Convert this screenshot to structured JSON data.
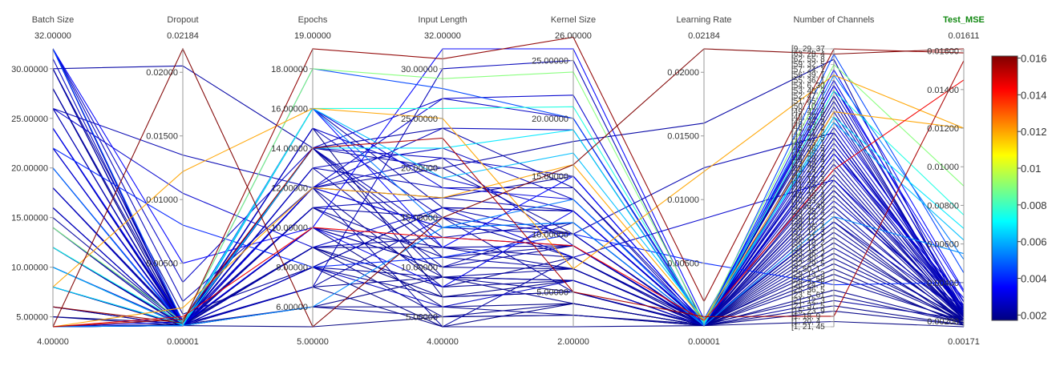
{
  "chart_data": {
    "type": "parallel_coordinates",
    "color_dimension": "Test_MSE",
    "dimensions": [
      {
        "name": "Batch Size",
        "range": [
          4.0,
          32.0
        ],
        "range_labels": [
          "4.00000",
          "32.00000"
        ],
        "ticks": [
          5,
          10,
          15,
          20,
          25,
          30
        ],
        "tick_labels": [
          "5.00000",
          "10.00000",
          "15.00000",
          "20.00000",
          "25.00000",
          "30.00000"
        ]
      },
      {
        "name": "Dropout",
        "range": [
          1e-05,
          0.02184
        ],
        "range_labels": [
          "0.00001",
          "0.02184"
        ],
        "ticks": [
          0.005,
          0.01,
          0.015,
          0.02
        ],
        "tick_labels": [
          "0.00500",
          "0.01000",
          "0.01500",
          "0.02000"
        ]
      },
      {
        "name": "Epochs",
        "range": [
          5.0,
          19.0
        ],
        "range_labels": [
          "5.00000",
          "19.00000"
        ],
        "ticks": [
          6,
          8,
          10,
          12,
          14,
          16,
          18
        ],
        "tick_labels": [
          "6.00000",
          "8.00000",
          "10.00000",
          "12.00000",
          "14.00000",
          "16.00000",
          "18.00000"
        ]
      },
      {
        "name": "Input Length",
        "range": [
          4.0,
          32.0
        ],
        "range_labels": [
          "4.00000",
          "32.00000"
        ],
        "ticks": [
          5,
          10,
          15,
          20,
          25,
          30
        ],
        "tick_labels": [
          "5.00000",
          "10.00000",
          "15.00000",
          "20.00000",
          "25.00000",
          "30.00000"
        ]
      },
      {
        "name": "Kernel Size",
        "range": [
          2.0,
          26.0
        ],
        "range_labels": [
          "2.00000",
          "26.00000"
        ],
        "ticks": [
          5,
          10,
          15,
          20,
          25
        ],
        "tick_labels": [
          "5.00000",
          "10.00000",
          "15.00000",
          "20.00000",
          "25.00000"
        ]
      },
      {
        "name": "Learning Rate",
        "range": [
          1e-05,
          0.02184
        ],
        "range_labels": [
          "0.00001",
          "0.02184"
        ],
        "ticks": [
          0.005,
          0.01,
          0.015,
          0.02
        ],
        "tick_labels": [
          "0.00500",
          "0.01000",
          "0.01500",
          "0.02000"
        ]
      },
      {
        "name": "Number of Channels",
        "categorical": true,
        "range_labels": [
          "",
          ""
        ],
        "categories": [
          "[1, 21, 45",
          "[1, 20, 4",
          "[1, 18, 9",
          "[15, 23, 9",
          "[21, 37, 5",
          "[21, 12, 3",
          "[23, 5, 61",
          "[25, 36, 5",
          "[26, 24, 5",
          "[28, 5, 58",
          "[29, 13, 3",
          "[3, 50, 1",
          "[32, 29, 5",
          "[32, 40, 1",
          "[33, 36, 2",
          "[34, 13, 1",
          "[36, 10, 2",
          "[36, 21, 1",
          "[37, 12, 3",
          "[38, 26, 4",
          "[39, 11, 3",
          "[39, 13, 2",
          "[39, 35, 4",
          "[4, 26, 49",
          "[40, 33, 4",
          "[40, 39, 4",
          "[41, 16, 1",
          "[41, 35, 3",
          "[42, 14, 4",
          "[42, 22, 2",
          "[43, 29, 2",
          "[43, 49, 2",
          "[44, 29, 4",
          "[45, 35, 3",
          "[45, 36, 5",
          "[46, 25, 1",
          "[47, 27, 5",
          "[47, 31, 2",
          "[48, 23, 2",
          "[48, 36, 3",
          "[49, 39, 5",
          "[49, 42, 4",
          "[50, 10, 3",
          "[51, 45, 2",
          "[52, 47, 1",
          "[53, 40, 3",
          "[54, 6, 30",
          "[55, 36, 1",
          "[56, 39, 1",
          "[57, 24, 1",
          "[59, 32, 5",
          "[62, 55, 8",
          "[63, 28, 4",
          "[9, 29, 37"
        ]
      },
      {
        "name": "Test_MSE",
        "highlight": true,
        "range": [
          0.00171,
          0.01611
        ],
        "range_labels": [
          "0.00171",
          "0.01611"
        ],
        "ticks": [
          0.002,
          0.004,
          0.006,
          0.008,
          0.01,
          0.012,
          0.014,
          0.016
        ],
        "tick_labels": [
          "0.00200",
          "0.00400",
          "0.00600",
          "0.00800",
          "0.01000",
          "0.01200",
          "0.01400",
          "0.01600"
        ]
      }
    ],
    "colorbar": {
      "colorscale": "jet",
      "range": [
        0.00171,
        0.01611
      ],
      "ticks": [
        0.002,
        0.004,
        0.006,
        0.008,
        0.01,
        0.012,
        0.014,
        0.016
      ],
      "tick_labels": [
        "0.002",
        "0.004",
        "0.006",
        "0.008",
        "0.01",
        "0.012",
        "0.014",
        "0.016"
      ]
    },
    "lines": [
      [
        4,
        0.02184,
        5,
        15,
        16,
        0.02184,
        52,
        0.01611
      ],
      [
        6,
        0.0003,
        19,
        31,
        27,
        0.002,
        53,
        0.0159
      ],
      [
        4,
        0.0006,
        14,
        23,
        5,
        0.0008,
        2,
        0.0155
      ],
      [
        4,
        0.0008,
        10,
        13,
        9,
        0.0005,
        30,
        0.0145
      ],
      [
        8,
        0.0122,
        16,
        25,
        7,
        0.0122,
        48,
        0.012
      ],
      [
        4,
        0.0015,
        12,
        17,
        16,
        0.0005,
        41,
        0.012
      ],
      [
        14,
        0.0004,
        18,
        29,
        24,
        0.0004,
        50,
        0.009
      ],
      [
        12,
        0.0003,
        16,
        26,
        21,
        0.0003,
        45,
        0.0075
      ],
      [
        8,
        0.0002,
        14,
        22,
        19,
        0.0002,
        40,
        0.0068
      ],
      [
        10,
        0.0001,
        16,
        19,
        17,
        0.0006,
        39,
        0.0062
      ],
      [
        4,
        0.0001,
        6,
        14,
        11,
        0.0001,
        21,
        0.0055
      ],
      [
        32,
        0.005,
        10,
        32,
        26,
        0.0006,
        46,
        0.0035
      ],
      [
        32,
        0.0035,
        14,
        27,
        20,
        0.0004,
        35,
        0.0027
      ],
      [
        32,
        0.002,
        12,
        24,
        19,
        0.0003,
        33,
        0.0025
      ],
      [
        30,
        0.0205,
        14,
        20,
        18,
        0.016,
        51,
        0.0022
      ],
      [
        30,
        0.001,
        8,
        16,
        12,
        0.0002,
        26,
        0.0021
      ],
      [
        28,
        0.0005,
        14,
        24,
        14,
        0.0004,
        43,
        0.0023
      ],
      [
        26,
        0.0135,
        12,
        14,
        10,
        0.0125,
        37,
        0.0024
      ],
      [
        26,
        0.0105,
        9,
        16,
        8,
        0.0085,
        28,
        0.0028
      ],
      [
        24,
        0.0004,
        16,
        12,
        15,
        0.0002,
        49,
        0.0036
      ],
      [
        24,
        0.0002,
        6,
        9,
        4,
        0.0001,
        14,
        0.0019
      ],
      [
        22,
        0.0001,
        12,
        14,
        11,
        0.0001,
        39,
        0.003
      ],
      [
        22,
        0.008,
        8,
        11,
        10,
        0.005,
        8,
        0.004
      ],
      [
        20,
        0.0002,
        10,
        8,
        12,
        0.0002,
        33,
        0.0032
      ],
      [
        18,
        0.0003,
        12,
        17,
        15,
        0.0002,
        27,
        0.0021
      ],
      [
        16,
        0.0001,
        8,
        6,
        6,
        0.0001,
        24,
        0.0026
      ],
      [
        16,
        0.0001,
        12,
        4,
        8,
        0.0003,
        44,
        0.0022
      ],
      [
        12,
        0.0001,
        10,
        10,
        7,
        0.0001,
        16,
        0.002
      ],
      [
        10,
        0.0001,
        14,
        13,
        9,
        0.0002,
        20,
        0.0024
      ],
      [
        8,
        0.0002,
        7,
        15,
        5,
        0.0001,
        31,
        0.0022
      ],
      [
        6,
        0.0001,
        12,
        20,
        10,
        0.0001,
        15,
        0.0021
      ],
      [
        5,
        0.0003,
        9,
        5,
        3,
        0.0002,
        6,
        0.0019
      ],
      [
        4,
        0.0002,
        15,
        7,
        6,
        0.0001,
        11,
        0.0018
      ],
      [
        4,
        0.0001,
        10,
        6,
        4,
        0.0001,
        4,
        0.0018
      ],
      [
        4,
        0.0001,
        7,
        30,
        25,
        0.0002,
        34,
        0.0025
      ],
      [
        4,
        0.0004,
        16,
        18,
        13,
        0.0003,
        47,
        0.003
      ],
      [
        32,
        0.0001,
        8,
        9,
        6,
        0.0001,
        18,
        0.0021
      ],
      [
        31,
        0.0003,
        14,
        21,
        9,
        0.0002,
        36,
        0.0026
      ],
      [
        30,
        0.0002,
        10,
        10,
        11,
        0.0001,
        22,
        0.0023
      ],
      [
        28,
        0.0001,
        6,
        5,
        4,
        0.0001,
        10,
        0.0019
      ],
      [
        26,
        0.0001,
        8,
        7,
        5,
        0.0002,
        12,
        0.002
      ],
      [
        24,
        0.0003,
        11,
        15,
        8,
        0.0003,
        29,
        0.0022
      ],
      [
        22,
        0.0002,
        9,
        12,
        7,
        0.0002,
        23,
        0.0021
      ],
      [
        20,
        0.0001,
        13,
        18,
        14,
        0.0001,
        42,
        0.0024
      ],
      [
        18,
        0.0001,
        15,
        19,
        12,
        0.0002,
        38,
        0.0027
      ],
      [
        15,
        0.0002,
        11,
        11,
        9,
        0.0001,
        25,
        0.0021
      ],
      [
        14,
        0.0001,
        9,
        8,
        8,
        0.0001,
        19,
        0.002
      ],
      [
        12,
        0.0001,
        8,
        16,
        10,
        0.0002,
        32,
        0.0023
      ],
      [
        10,
        0.0002,
        13,
        22,
        13,
        0.0001,
        40,
        0.0026
      ],
      [
        8,
        0.0001,
        6,
        6,
        3,
        0.0001,
        7,
        0.0019
      ],
      [
        6,
        0.0001,
        11,
        9,
        5,
        0.0001,
        13,
        0.002
      ],
      [
        5,
        0.0001,
        8,
        4,
        4,
        0.0001,
        17,
        0.0018
      ],
      [
        4,
        0.0001,
        14,
        11,
        7,
        0.0002,
        44,
        0.0022
      ],
      [
        4,
        0.0001,
        5,
        5,
        3,
        0.0001,
        1,
        0.00171
      ],
      [
        4,
        0.0001,
        12,
        27,
        22,
        0.0001,
        45,
        0.0028
      ],
      [
        32,
        0.0004,
        18,
        28,
        20,
        0.0002,
        52,
        0.0045
      ],
      [
        20,
        0.0001,
        16,
        14,
        13,
        0.0001,
        48,
        0.0052
      ],
      [
        28,
        0.0001,
        7,
        4,
        2,
        0.0001,
        3,
        0.0018
      ],
      [
        16,
        0.0001,
        10,
        12,
        8,
        0.0001,
        30,
        0.0021
      ],
      [
        12,
        0.0002,
        13,
        10,
        9,
        0.0001,
        26,
        0.0022
      ],
      [
        8,
        0.0001,
        12,
        8,
        6,
        0.0001,
        9,
        0.002
      ],
      [
        24,
        0.0001,
        14,
        9,
        7,
        0.0001,
        5,
        0.0021
      ],
      [
        22,
        0.0001,
        9,
        13,
        11,
        0.0001,
        28,
        0.0023
      ],
      [
        4,
        0.0001,
        11,
        17,
        12,
        0.0001,
        36,
        0.0024
      ],
      [
        26,
        0.0002,
        15,
        15,
        10,
        0.0001,
        37,
        0.0025
      ],
      [
        18,
        0.0002,
        7,
        9,
        6,
        0.0001,
        21,
        0.002
      ],
      [
        30,
        0.0001,
        9,
        7,
        5,
        0.0001,
        20,
        0.0019
      ],
      [
        10,
        0.0001,
        14,
        12,
        9,
        0.0001,
        34,
        0.0022
      ],
      [
        14,
        0.0003,
        12,
        21,
        15,
        0.0002,
        46,
        0.0026
      ],
      [
        32,
        0.0001,
        16,
        16,
        12,
        0.0001,
        41,
        0.0023
      ]
    ]
  }
}
